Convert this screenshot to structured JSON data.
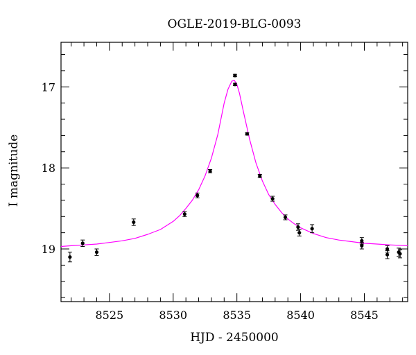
{
  "chart_data": {
    "type": "scatter",
    "title": "OGLE-2019-BLG-0093",
    "xlabel": "HJD - 2450000",
    "ylabel": "I magnitude",
    "xlim": [
      8521.2,
      8548.4
    ],
    "ylim": [
      19.65,
      16.45
    ],
    "y_inverted": true,
    "x_ticks": [
      8525,
      8530,
      8535,
      8540,
      8545
    ],
    "y_ticks": [
      17,
      18,
      19
    ],
    "x_tick_labels": [
      "8525",
      "8530",
      "8535",
      "8540",
      "8545"
    ],
    "y_tick_labels": [
      "17",
      "18",
      "19"
    ],
    "grid": false,
    "marker_color": "#000000",
    "model_color": "#ff00ff",
    "points": [
      {
        "x": 8521.9,
        "y": 19.1,
        "err": 0.06
      },
      {
        "x": 8522.9,
        "y": 18.93,
        "err": 0.04
      },
      {
        "x": 8524.0,
        "y": 19.04,
        "err": 0.04
      },
      {
        "x": 8526.9,
        "y": 18.67,
        "err": 0.04
      },
      {
        "x": 8530.9,
        "y": 18.57,
        "err": 0.03
      },
      {
        "x": 8531.9,
        "y": 18.34,
        "err": 0.03
      },
      {
        "x": 8532.9,
        "y": 18.04,
        "err": 0.02
      },
      {
        "x": 8534.85,
        "y": 16.86,
        "err": 0.015
      },
      {
        "x": 8534.85,
        "y": 16.97,
        "err": 0.015
      },
      {
        "x": 8535.8,
        "y": 17.58,
        "err": 0.015
      },
      {
        "x": 8536.8,
        "y": 18.1,
        "err": 0.02
      },
      {
        "x": 8537.8,
        "y": 18.38,
        "err": 0.03
      },
      {
        "x": 8538.8,
        "y": 18.61,
        "err": 0.03
      },
      {
        "x": 8539.8,
        "y": 18.73,
        "err": 0.04
      },
      {
        "x": 8539.9,
        "y": 18.8,
        "err": 0.04
      },
      {
        "x": 8540.9,
        "y": 18.75,
        "err": 0.05
      },
      {
        "x": 8544.8,
        "y": 18.9,
        "err": 0.04
      },
      {
        "x": 8544.8,
        "y": 18.96,
        "err": 0.04
      },
      {
        "x": 8546.8,
        "y": 19.0,
        "err": 0.04
      },
      {
        "x": 8546.8,
        "y": 19.07,
        "err": 0.05
      },
      {
        "x": 8547.7,
        "y": 19.04,
        "err": 0.05
      },
      {
        "x": 8547.8,
        "y": 19.06,
        "err": 0.05
      }
    ],
    "model": {
      "x": [
        8521.2,
        8522,
        8523,
        8524,
        8525,
        8526,
        8527,
        8528,
        8529,
        8530,
        8530.5,
        8531,
        8531.5,
        8532,
        8532.5,
        8533,
        8533.5,
        8534,
        8534.3,
        8534.6,
        8534.8,
        8535,
        8535.2,
        8535.5,
        8536,
        8536.5,
        8537,
        8537.5,
        8538,
        8538.5,
        8539,
        8539.5,
        8540,
        8541,
        8542,
        8543,
        8544,
        8545,
        8546,
        8547,
        8548.4
      ],
      "y": [
        18.97,
        18.96,
        18.95,
        18.94,
        18.92,
        18.9,
        18.87,
        18.82,
        18.76,
        18.66,
        18.59,
        18.5,
        18.4,
        18.27,
        18.1,
        17.88,
        17.59,
        17.2,
        17.03,
        16.93,
        16.92,
        16.97,
        17.08,
        17.3,
        17.65,
        17.94,
        18.16,
        18.33,
        18.45,
        18.55,
        18.63,
        18.69,
        18.74,
        18.81,
        18.86,
        18.89,
        18.91,
        18.93,
        18.94,
        18.95,
        18.96
      ]
    }
  }
}
